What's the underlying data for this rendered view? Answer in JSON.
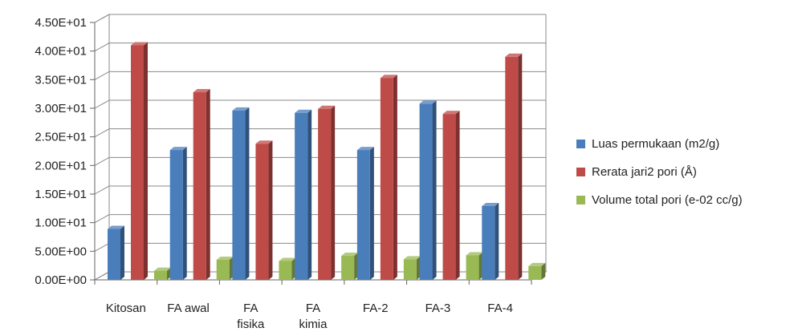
{
  "chart_data": {
    "type": "bar",
    "categories": [
      "Kitosan",
      "FA awal",
      "FA fisika",
      "FA kimia",
      "FA-2",
      "FA-3",
      "FA-4"
    ],
    "category_lines": [
      [
        "Kitosan"
      ],
      [
        "FA awal"
      ],
      [
        "FA",
        "fisika"
      ],
      [
        "FA",
        "kimia"
      ],
      [
        "FA-2"
      ],
      [
        "FA-3"
      ],
      [
        "FA-4"
      ]
    ],
    "series": [
      {
        "name": "Luas permukaan (m2/g)",
        "color": "#4a7ebb",
        "values": [
          8.9,
          22.7,
          29.6,
          29.2,
          22.7,
          30.8,
          12.9
        ]
      },
      {
        "name": "Rerata jari2 pori (Å)",
        "color": "#be4b48",
        "values": [
          41.0,
          32.8,
          23.8,
          29.9,
          35.3,
          29.0,
          39.0
        ]
      },
      {
        "name": "Volume total pori (e-02 cc/g)",
        "color": "#98b954",
        "values": [
          1.6,
          3.5,
          3.3,
          4.2,
          3.6,
          4.3,
          2.4
        ]
      }
    ],
    "ylim": [
      0,
      45
    ],
    "yticks": [
      "0.00E+00",
      "5.00E+00",
      "1.00E+01",
      "1.50E+01",
      "2.00E+01",
      "2.50E+01",
      "3.00E+01",
      "3.50E+01",
      "4.00E+01",
      "4.50E+01"
    ],
    "grid": true,
    "legend_position": "right",
    "style": "3d-clustered-column"
  }
}
